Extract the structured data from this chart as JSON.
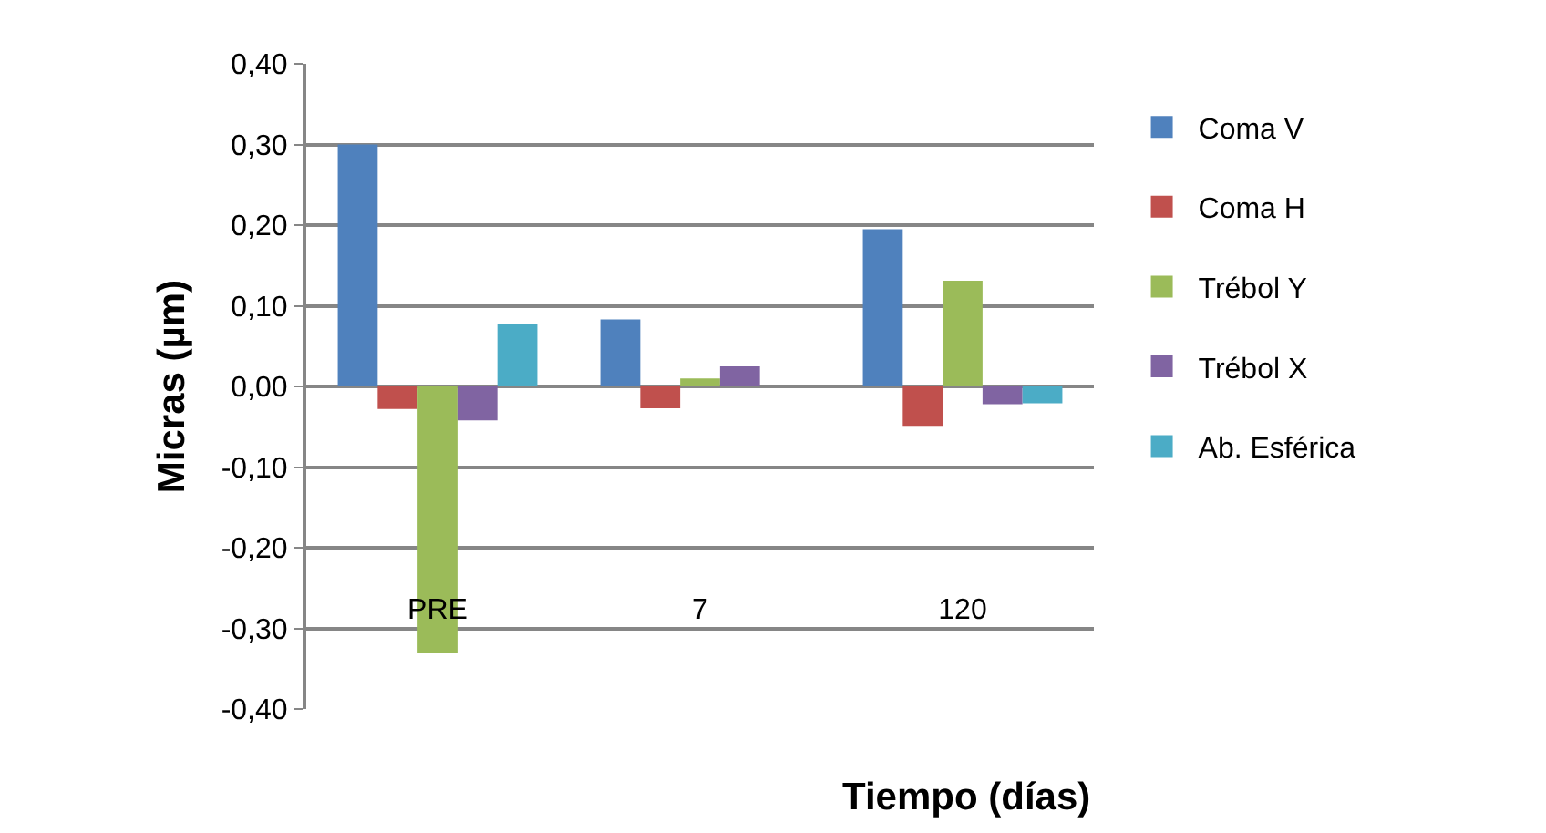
{
  "chart_data": {
    "type": "bar",
    "xlabel": "Tiempo (días)",
    "ylabel": "Micras (µm)",
    "categories": [
      "PRE",
      "7",
      "120"
    ],
    "series": [
      {
        "name": "Coma V",
        "color": "#4f81bd",
        "values": [
          0.3,
          0.083,
          0.195
        ]
      },
      {
        "name": "Coma H",
        "color": "#c0504d",
        "values": [
          -0.028,
          -0.027,
          -0.049
        ]
      },
      {
        "name": "Trébol Y",
        "color": "#9bbb59",
        "values": [
          -0.33,
          0.01,
          0.131
        ]
      },
      {
        "name": "Trébol X",
        "color": "#8064a2",
        "values": [
          -0.042,
          0.025,
          -0.022
        ]
      },
      {
        "name": "Ab. Esférica",
        "color": "#4bacc6",
        "values": [
          0.078,
          0,
          -0.021
        ]
      }
    ],
    "ylim": [
      -0.4,
      0.4
    ],
    "yticks": [
      {
        "value": -0.4,
        "label": "-0,40"
      },
      {
        "value": -0.3,
        "label": "-0,30"
      },
      {
        "value": -0.2,
        "label": "-0,20"
      },
      {
        "value": -0.1,
        "label": "-0,10"
      },
      {
        "value": 0,
        "label": "0,00"
      },
      {
        "value": 0.1,
        "label": "0,10"
      },
      {
        "value": 0.2,
        "label": "0,20"
      },
      {
        "value": 0.3,
        "label": "0,30"
      },
      {
        "value": 0.4,
        "label": "0,40"
      }
    ],
    "grid": "y",
    "legend": "right"
  }
}
